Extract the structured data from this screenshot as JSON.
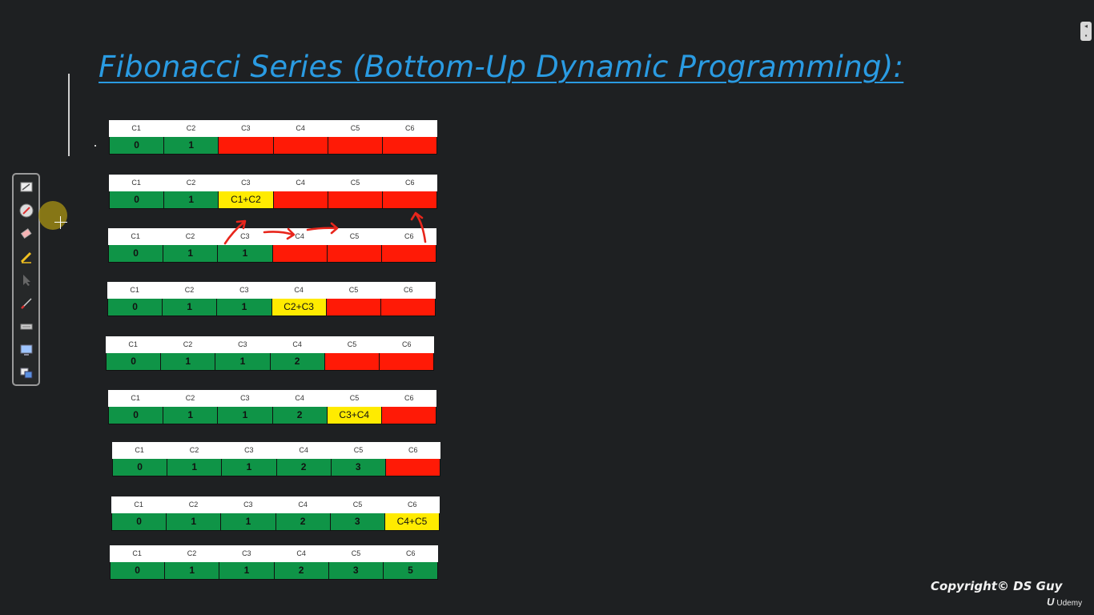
{
  "slide": {
    "title": "Fibonacci Series (Bottom-Up Dynamic Programming):",
    "copyright": "Copyright© DS Guy",
    "watermark": "Udemy"
  },
  "headers": [
    "C1",
    "C2",
    "C3",
    "C4",
    "C5",
    "C6"
  ],
  "rows": [
    [
      {
        "v": "0",
        "c": "green"
      },
      {
        "v": "1",
        "c": "green"
      },
      {
        "v": "",
        "c": "red"
      },
      {
        "v": "",
        "c": "red"
      },
      {
        "v": "",
        "c": "red"
      },
      {
        "v": "",
        "c": "red"
      }
    ],
    [
      {
        "v": "0",
        "c": "green"
      },
      {
        "v": "1",
        "c": "green"
      },
      {
        "v": "C1+C2",
        "c": "yellow"
      },
      {
        "v": "",
        "c": "red"
      },
      {
        "v": "",
        "c": "red"
      },
      {
        "v": "",
        "c": "red"
      }
    ],
    [
      {
        "v": "0",
        "c": "green"
      },
      {
        "v": "1",
        "c": "green"
      },
      {
        "v": "1",
        "c": "green"
      },
      {
        "v": "",
        "c": "red"
      },
      {
        "v": "",
        "c": "red"
      },
      {
        "v": "",
        "c": "red"
      }
    ],
    [
      {
        "v": "0",
        "c": "green"
      },
      {
        "v": "1",
        "c": "green"
      },
      {
        "v": "1",
        "c": "green"
      },
      {
        "v": "C2+C3",
        "c": "yellow"
      },
      {
        "v": "",
        "c": "red"
      },
      {
        "v": "",
        "c": "red"
      }
    ],
    [
      {
        "v": "0",
        "c": "green"
      },
      {
        "v": "1",
        "c": "green"
      },
      {
        "v": "1",
        "c": "green"
      },
      {
        "v": "2",
        "c": "green"
      },
      {
        "v": "",
        "c": "red"
      },
      {
        "v": "",
        "c": "red"
      }
    ],
    [
      {
        "v": "0",
        "c": "green"
      },
      {
        "v": "1",
        "c": "green"
      },
      {
        "v": "1",
        "c": "green"
      },
      {
        "v": "2",
        "c": "green"
      },
      {
        "v": "C3+C4",
        "c": "yellow"
      },
      {
        "v": "",
        "c": "red"
      }
    ],
    [
      {
        "v": "0",
        "c": "green"
      },
      {
        "v": "1",
        "c": "green"
      },
      {
        "v": "1",
        "c": "green"
      },
      {
        "v": "2",
        "c": "green"
      },
      {
        "v": "3",
        "c": "green"
      },
      {
        "v": "",
        "c": "red"
      }
    ],
    [
      {
        "v": "0",
        "c": "green"
      },
      {
        "v": "1",
        "c": "green"
      },
      {
        "v": "1",
        "c": "green"
      },
      {
        "v": "2",
        "c": "green"
      },
      {
        "v": "3",
        "c": "green"
      },
      {
        "v": "C4+C5",
        "c": "yellow"
      }
    ],
    [
      {
        "v": "0",
        "c": "green"
      },
      {
        "v": "1",
        "c": "green"
      },
      {
        "v": "1",
        "c": "green"
      },
      {
        "v": "2",
        "c": "green"
      },
      {
        "v": "3",
        "c": "green"
      },
      {
        "v": "5",
        "c": "green"
      }
    ]
  ],
  "toolbar": {
    "tools": [
      "whiteboard-icon",
      "pen-icon",
      "eraser-icon",
      "highlighter-icon",
      "pointer-icon",
      "brush-icon",
      "keyboard-icon",
      "screen-icon",
      "windows-icon"
    ]
  },
  "colors": {
    "green": "#0f9447",
    "red": "#ff1a06",
    "yellow": "#ffeb00",
    "title": "#2a9be2",
    "annotation": "#e8261c"
  }
}
